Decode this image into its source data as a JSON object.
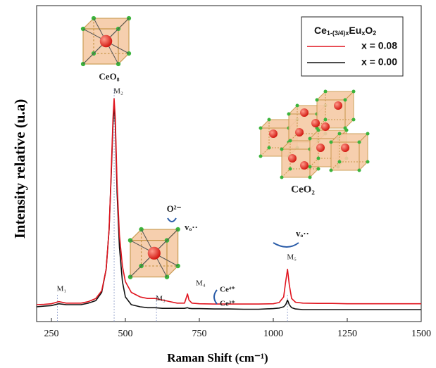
{
  "chart_data": {
    "type": "line",
    "x_label": "Raman Shift (cm⁻¹)",
    "y_label": "Intensity relative (u.a)",
    "legend_title": [
      "Ce",
      "1-(3/4)x",
      "Eu",
      "x",
      "O",
      "2"
    ],
    "xlim": [
      200,
      1500
    ],
    "xticks": [
      250,
      500,
      750,
      1000,
      1250,
      1500
    ],
    "ylim": [
      0,
      100
    ],
    "x": [
      200,
      225,
      250,
      275,
      300,
      325,
      350,
      375,
      400,
      420,
      435,
      445,
      452,
      458,
      462,
      466,
      472,
      480,
      490,
      500,
      520,
      550,
      575,
      600,
      625,
      650,
      675,
      700,
      710,
      715,
      725,
      750,
      800,
      850,
      900,
      950,
      1000,
      1020,
      1035,
      1042,
      1048,
      1054,
      1062,
      1075,
      1100,
      1150,
      1200,
      1250,
      1300,
      1350,
      1400,
      1450,
      1500
    ],
    "series": [
      {
        "name": "x = 0.08",
        "color": "#e0141e",
        "values": [
          5.5,
          5.6,
          5.8,
          6.5,
          6.0,
          6.0,
          6.0,
          6.5,
          7.5,
          10,
          17,
          30,
          48,
          66,
          72.5,
          66,
          45,
          28,
          18,
          13,
          9.5,
          8,
          7.5,
          7.5,
          7,
          6.5,
          6,
          6,
          9,
          7,
          6,
          5.8,
          5.7,
          5.7,
          5.7,
          5.7,
          5.8,
          6.2,
          8,
          13,
          17,
          12,
          7.5,
          6.3,
          6,
          5.9,
          5.9,
          5.8,
          5.8,
          5.8,
          5.8,
          5.8,
          5.8
        ]
      },
      {
        "name": "x = 0.00",
        "color": "#111111",
        "values": [
          4.8,
          5.0,
          5.2,
          5.8,
          5.5,
          5.5,
          5.5,
          6.0,
          6.8,
          9.5,
          17,
          30,
          47,
          64,
          71,
          64,
          42,
          24,
          13,
          8,
          5.5,
          4.8,
          4.5,
          4.5,
          4.3,
          4.3,
          4.3,
          4.3,
          4.5,
          4.3,
          4.2,
          4.2,
          4.1,
          4.1,
          4.0,
          4.0,
          4.2,
          4.4,
          4.8,
          5.5,
          7,
          5.5,
          4.5,
          4.1,
          3.9,
          3.9,
          3.9,
          3.9,
          3.9,
          3.9,
          3.9,
          3.9,
          3.9
        ]
      }
    ],
    "peaks": [
      {
        "x": 270,
        "label": "M₁"
      },
      {
        "x": 462,
        "label": "M₂"
      },
      {
        "x": 605,
        "label": "M₃"
      },
      {
        "x": 1048,
        "label": "M₅"
      }
    ],
    "annotations": {
      "m4": "M₄",
      "ceo8": "CeO₈",
      "ceo2": "CeO₂",
      "o2": "O²⁻",
      "vo1": "vₒ··",
      "vo2": "vₒ··",
      "ce4": "Ce⁴⁺",
      "ce3": "Ce³⁺"
    }
  }
}
